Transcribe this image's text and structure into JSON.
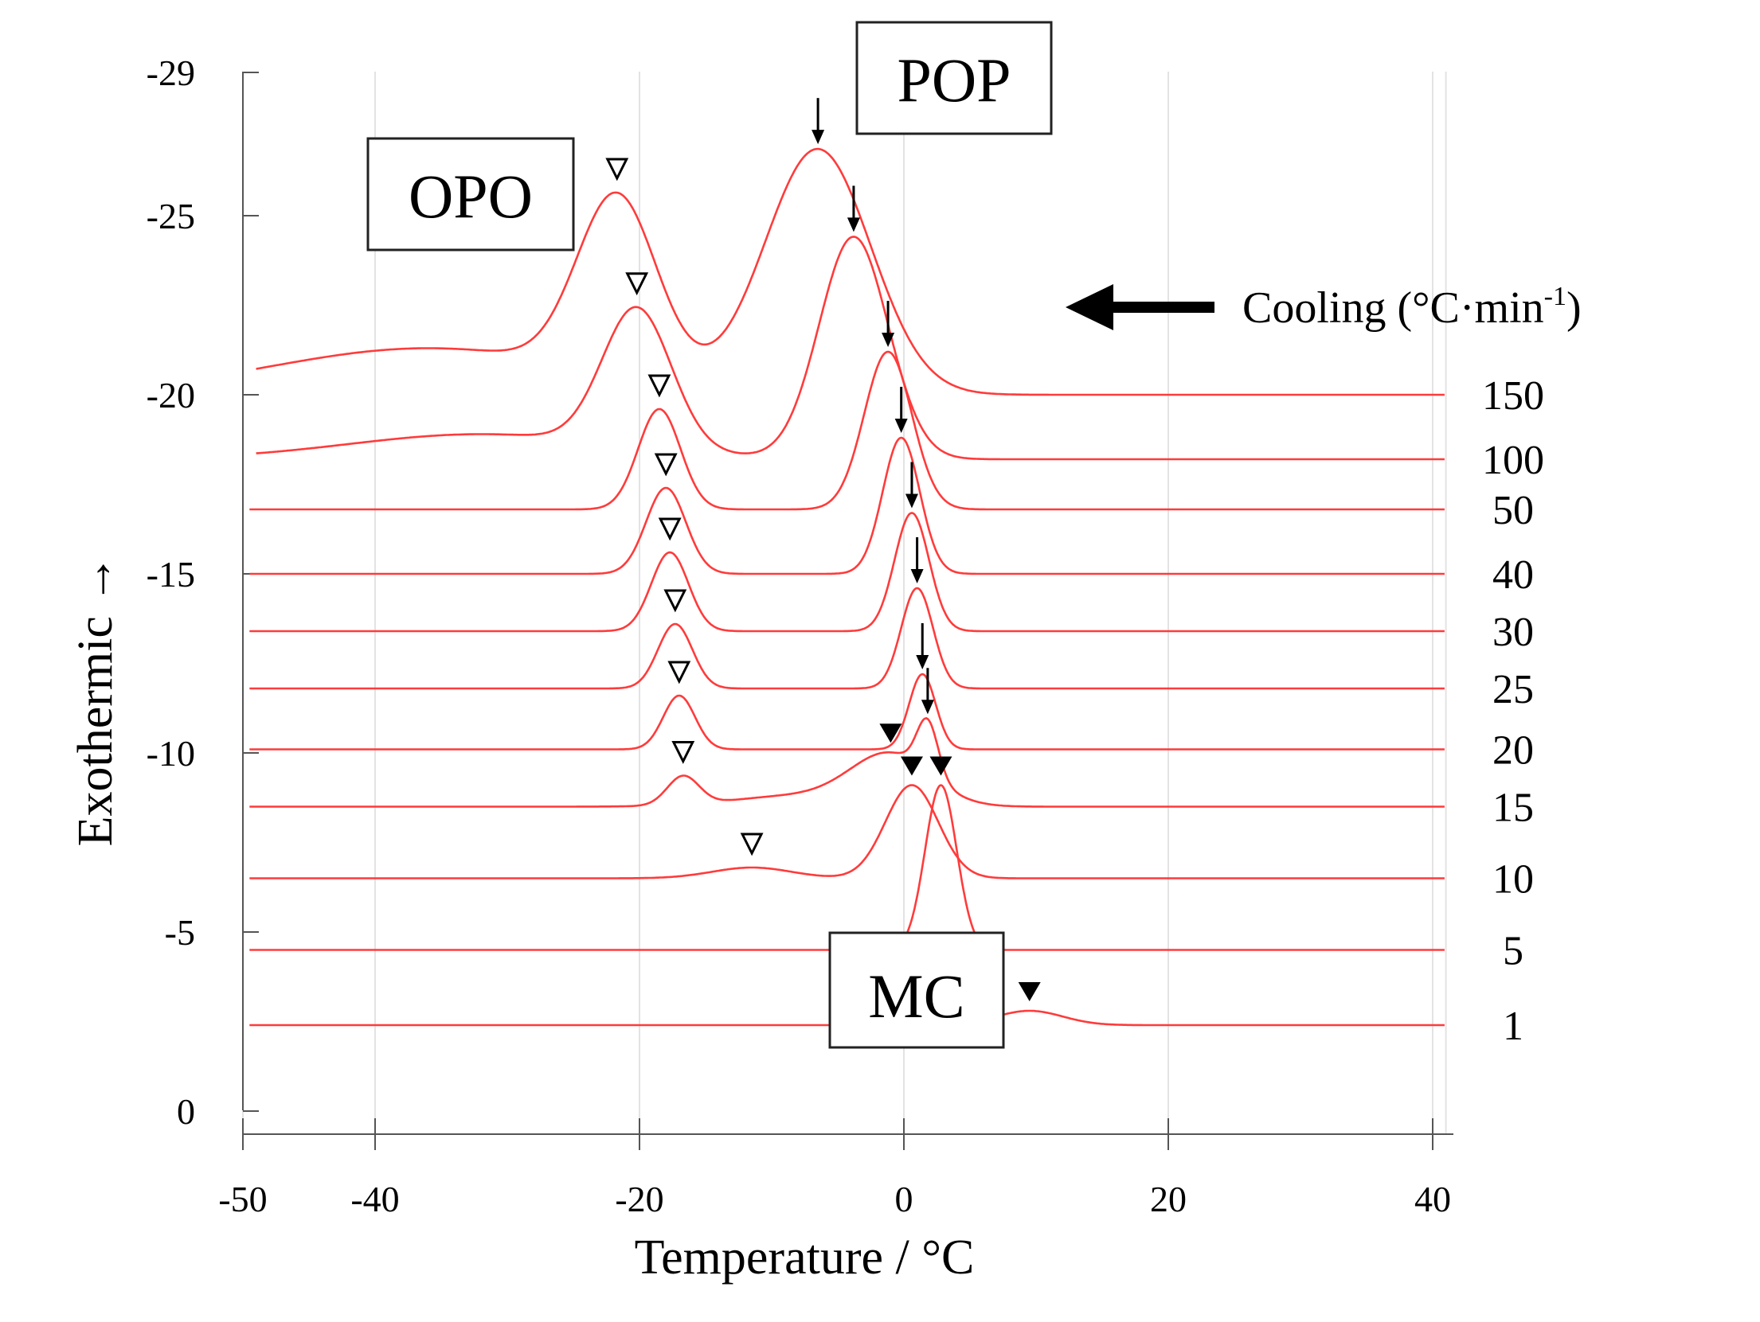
{
  "chart_data": {
    "type": "line",
    "title": "",
    "xlabel": "Temperature   / °C",
    "ylabel": "Exothermic  →",
    "xlim": [
      -50,
      41
    ],
    "ylim": [
      0,
      -29
    ],
    "xticks": [
      -50,
      -40,
      -20,
      0,
      20,
      40
    ],
    "xtick_labels": [
      "-50",
      "-40",
      "-20",
      "0",
      "20",
      "40"
    ],
    "yticks": [
      -29,
      -25,
      -20,
      -15,
      -10,
      -5,
      0
    ],
    "ytick_labels": [
      "-29",
      "-25",
      "-20",
      "-15",
      "-10",
      "-5",
      "0"
    ],
    "cooling_label": "Cooling (°C·min",
    "cooling_sup": "-1",
    "cooling_close": ")",
    "annotations": [
      {
        "text": "POP",
        "x": -4.0,
        "y": -28.0
      },
      {
        "text": "OPO",
        "x": -32.5,
        "y": -25.6
      },
      {
        "text": "MC",
        "x": 1.0,
        "y": -3.2
      }
    ],
    "line_color": "#ff3b3b",
    "series": [
      {
        "name": "150",
        "baseline": -20.0,
        "start": -49.0,
        "peaks": [
          {
            "x": -21.7,
            "h": 5.0,
            "w": 3.0,
            "k": 1,
            "marker": "open"
          },
          {
            "x": -6.5,
            "h": 6.8,
            "w": 4.0,
            "k": 1,
            "marker": "arrow"
          }
        ],
        "extra": [
          {
            "x": -36,
            "h": 1.3,
            "w": 12.0
          }
        ]
      },
      {
        "name": "100",
        "baseline": -18.2,
        "start": -49.0,
        "peaks": [
          {
            "x": -20.2,
            "h": 3.9,
            "w": 2.6,
            "k": 1,
            "marker": "open"
          },
          {
            "x": -3.8,
            "h": 6.2,
            "w": 2.6,
            "k": 1,
            "marker": "arrow"
          }
        ],
        "extra": [
          {
            "x": -32,
            "h": 0.7,
            "w": 10.0
          }
        ]
      },
      {
        "name": "50",
        "baseline": -16.8,
        "start": -49.5,
        "peaks": [
          {
            "x": -18.5,
            "h": 2.8,
            "w": 1.6,
            "k": 1,
            "marker": "open"
          },
          {
            "x": -1.2,
            "h": 4.4,
            "w": 1.8,
            "k": 1,
            "marker": "arrow"
          }
        ],
        "extra": []
      },
      {
        "name": "40",
        "baseline": -15.0,
        "start": -49.5,
        "peaks": [
          {
            "x": -18.0,
            "h": 2.4,
            "w": 1.5,
            "k": 1,
            "marker": "open"
          },
          {
            "x": -0.2,
            "h": 3.8,
            "w": 1.4,
            "k": 1,
            "marker": "arrow"
          }
        ],
        "extra": []
      },
      {
        "name": "30",
        "baseline": -13.4,
        "start": -49.5,
        "peaks": [
          {
            "x": -17.7,
            "h": 2.2,
            "w": 1.4,
            "k": 1,
            "marker": "open"
          },
          {
            "x": 0.6,
            "h": 3.3,
            "w": 1.3,
            "k": 1,
            "marker": "arrow"
          }
        ],
        "extra": []
      },
      {
        "name": "25",
        "baseline": -11.8,
        "start": -49.5,
        "peaks": [
          {
            "x": -17.3,
            "h": 1.8,
            "w": 1.3,
            "k": 1,
            "marker": "open"
          },
          {
            "x": 1.0,
            "h": 2.8,
            "w": 1.2,
            "k": 1,
            "marker": "arrow"
          }
        ],
        "extra": []
      },
      {
        "name": "20",
        "baseline": -10.1,
        "start": -49.5,
        "peaks": [
          {
            "x": -17.0,
            "h": 1.5,
            "w": 1.2,
            "k": 1,
            "marker": "open"
          },
          {
            "x": 1.4,
            "h": 2.1,
            "w": 1.0,
            "k": 1,
            "marker": "arrow"
          }
        ],
        "extra": []
      },
      {
        "name": "15",
        "baseline": -8.5,
        "start": -49.5,
        "peaks": [
          {
            "x": -16.7,
            "h": 0.8,
            "w": 1.2,
            "k": 1,
            "marker": "open"
          },
          {
            "x": -1.0,
            "h": 1.4,
            "w": 3.0,
            "k": 1,
            "marker": "filled"
          },
          {
            "x": 1.8,
            "h": 1.5,
            "w": 0.8,
            "k": 1,
            "marker": "arrow"
          }
        ],
        "extra": [
          {
            "x": -8,
            "h": 0.3,
            "w": 5.0
          }
        ]
      },
      {
        "name": "10",
        "baseline": -6.5,
        "start": -49.5,
        "peaks": [
          {
            "x": -11.5,
            "h": 0.3,
            "w": 3.0,
            "k": 1,
            "marker": "open"
          },
          {
            "x": 0.6,
            "h": 2.6,
            "w": 2.0,
            "k": 1,
            "marker": "filled"
          }
        ],
        "extra": []
      },
      {
        "name": "5",
        "baseline": -4.5,
        "start": -49.5,
        "peaks": [
          {
            "x": 2.8,
            "h": 4.6,
            "w": 1.2,
            "k": 1,
            "marker": "filled"
          }
        ],
        "extra": []
      },
      {
        "name": "1",
        "baseline": -2.4,
        "start": -49.5,
        "peaks": [
          {
            "x": 9.5,
            "h": 0.4,
            "w": 2.5,
            "k": 1,
            "marker": "filled"
          }
        ],
        "extra": []
      }
    ]
  }
}
